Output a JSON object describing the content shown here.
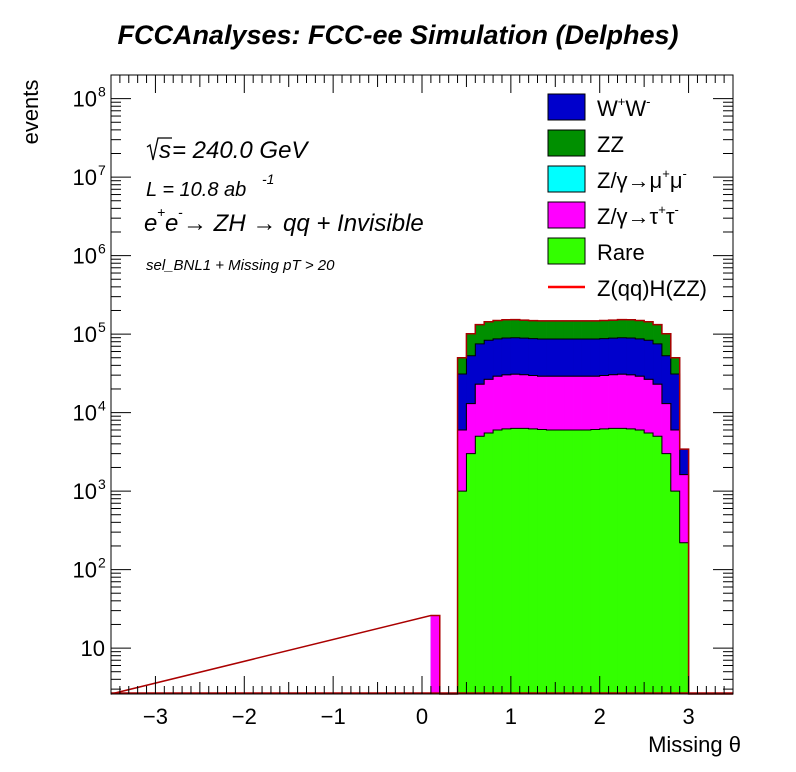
{
  "title": "FCCAnalyses: FCC-ee Simulation (Delphes)",
  "chart_data": {
    "type": "bar",
    "title": "FCCAnalyses: FCC-ee Simulation (Delphes)",
    "xlabel": "Missing θ",
    "ylabel": "events",
    "xlim": [
      -3.5,
      3.5
    ],
    "ylim": [
      2.6,
      200000000
    ],
    "log_y": true,
    "x_ticks": [
      -3,
      -2,
      -1,
      0,
      1,
      2,
      3
    ],
    "x_tick_labels": [
      "−3",
      "−2",
      "−1",
      "0",
      "1",
      "2",
      "3"
    ],
    "y_ticks": [
      {
        "value": 10,
        "label": "10",
        "exp": ""
      },
      {
        "value": 100,
        "label": "10",
        "exp": "2"
      },
      {
        "value": 1000,
        "label": "10",
        "exp": "3"
      },
      {
        "value": 10000,
        "label": "10",
        "exp": "4"
      },
      {
        "value": 100000,
        "label": "10",
        "exp": "5"
      },
      {
        "value": 1000000,
        "label": "10",
        "exp": "6"
      },
      {
        "value": 10000000,
        "label": "10",
        "exp": "7"
      },
      {
        "value": 100000000,
        "label": "10",
        "exp": "8"
      }
    ],
    "bins": {
      "start": 0.1,
      "width": 0.1
    },
    "stack_order": [
      "Rare",
      "Z/γ→τ+τ-",
      "Z/γ→μ+μ-",
      "WW",
      "ZZ"
    ],
    "series": [
      {
        "key": "Rare",
        "name": "Rare",
        "color": "#33ff00",
        "values": [
          0,
          0,
          0,
          1000,
          3000,
          5000,
          5500,
          6000,
          6200,
          6300,
          6300,
          6200,
          6100,
          6000,
          6000,
          6000,
          6000,
          6000,
          6100,
          6200,
          6300,
          6300,
          6200,
          6000,
          5500,
          5000,
          3000,
          1000,
          220,
          0
        ]
      },
      {
        "key": "Z/γ→τ+τ-",
        "name": "Z/γ→τ+τ-",
        "color": "#ff00ff",
        "values": [
          26,
          0,
          0,
          5000,
          10000,
          18000,
          21000,
          23000,
          24000,
          24500,
          24000,
          23500,
          23000,
          23000,
          23000,
          23000,
          23000,
          23000,
          23000,
          23500,
          24000,
          24500,
          24000,
          23000,
          21000,
          18000,
          10000,
          5000,
          1400,
          0
        ]
      },
      {
        "key": "Z/γ→μ+μ-",
        "name": "Z/γ→μ+μ-",
        "color": "#00ffff",
        "values": [
          0,
          0,
          0,
          0,
          10,
          20,
          20,
          20,
          20,
          20,
          20,
          20,
          20,
          20,
          20,
          20,
          20,
          20,
          20,
          20,
          20,
          20,
          20,
          20,
          20,
          20,
          20,
          10,
          0,
          0
        ]
      },
      {
        "key": "WW",
        "name": "W+W-",
        "color": "#0000cc",
        "values": [
          0,
          0,
          0,
          25000,
          40000,
          52000,
          57000,
          58000,
          59000,
          59000,
          58500,
          58000,
          57500,
          57500,
          57500,
          57500,
          57500,
          57500,
          57500,
          58000,
          58500,
          59000,
          59000,
          58000,
          57000,
          52000,
          40000,
          25000,
          1800,
          0
        ]
      },
      {
        "key": "ZZ",
        "name": "ZZ",
        "color": "#008f00",
        "values": [
          0,
          0,
          0,
          19000,
          48000,
          57000,
          60000,
          62000,
          63000,
          63000,
          62000,
          61000,
          61000,
          61000,
          61000,
          61000,
          61000,
          61000,
          61000,
          61500,
          62000,
          63000,
          63000,
          62000,
          60000,
          57000,
          48000,
          19000,
          0,
          0
        ]
      },
      {
        "key": "Signal",
        "name": "Z(qq)H(ZZ)",
        "color": "#ff0000",
        "line": true,
        "values": [
          0,
          0,
          0,
          0,
          0,
          0,
          0,
          0,
          0,
          0,
          0,
          0,
          0,
          0,
          0,
          0,
          0,
          0,
          0,
          0,
          0,
          0,
          0,
          0,
          0,
          0,
          0,
          0,
          0,
          0
        ]
      }
    ],
    "annotations": {
      "sqrt_s": "s",
      "energy": " = 240.0 GeV",
      "lumi": "L = 10.8 ab",
      "lumi_exp": "-1",
      "process_e": "e",
      "process_plus": "+",
      "process_e2": "e",
      "process_minus": "-",
      "process_rest": "  → ZH  → qq + Invisible",
      "selection": "sel_BNL1 + Missing pT > 20"
    },
    "legend": {
      "position": "top-right",
      "entries": [
        {
          "series": "WW",
          "label": "W",
          "sup1": "+",
          "label2": "W",
          "sup2": "-",
          "color": "#0000cc"
        },
        {
          "series": "ZZ",
          "label": "ZZ",
          "color": "#008f00"
        },
        {
          "series": "Z/γ→μ+μ-",
          "label": "Z/γ→μ",
          "sup1": "+",
          "label2": "μ",
          "sup2": "-",
          "color": "#00ffff"
        },
        {
          "series": "Z/γ→τ+τ-",
          "label": "Z/γ→τ",
          "sup1": "+",
          "label2": "τ",
          "sup2": "-",
          "color": "#ff00ff"
        },
        {
          "series": "Rare",
          "label": "Rare",
          "color": "#33ff00"
        },
        {
          "series": "Signal",
          "label": "Z(qq)H(ZZ)",
          "color": "#ff0000",
          "line": true
        }
      ]
    }
  }
}
